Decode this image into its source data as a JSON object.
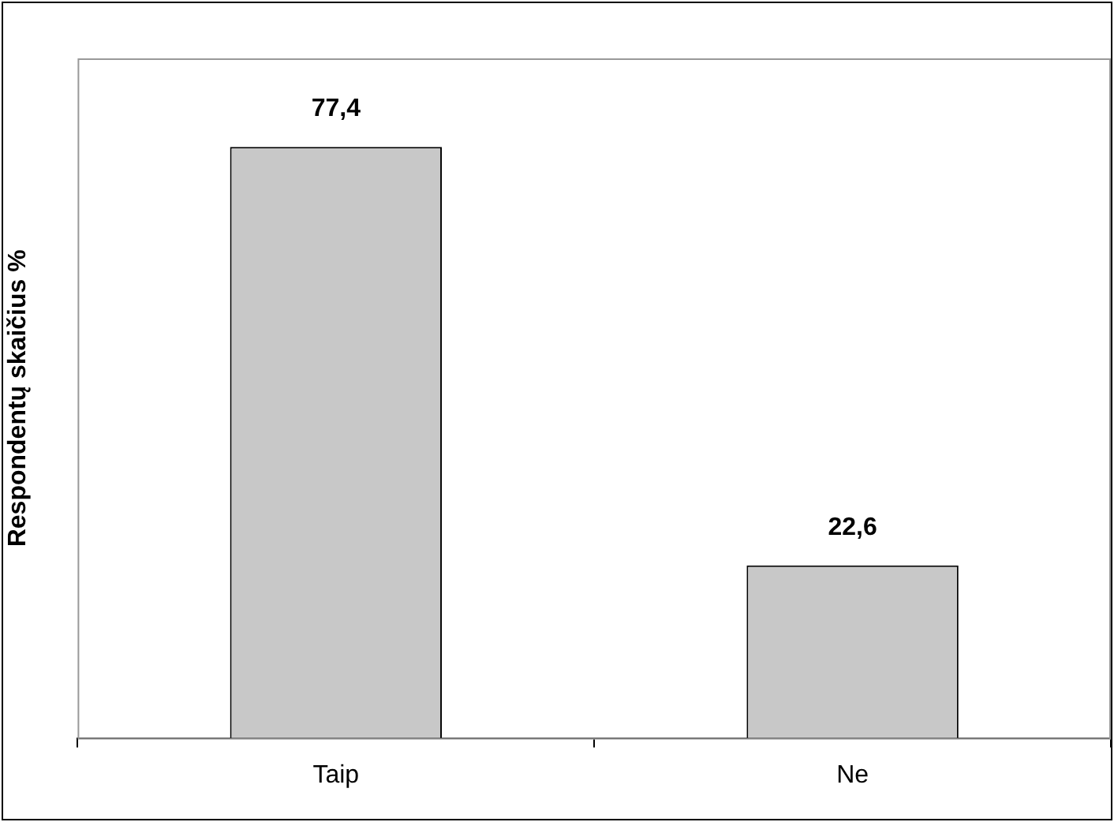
{
  "chart_data": {
    "type": "bar",
    "ylabel": "Respondentų skaičius %",
    "categories": [
      "Taip",
      "Ne"
    ],
    "values": [
      77.4,
      22.6
    ],
    "value_labels": [
      "77,4",
      "22,6"
    ],
    "color": "#c8c8c8",
    "ylim": [
      0,
      89
    ],
    "tick_labels": "x",
    "grid": false,
    "legend": false
  }
}
